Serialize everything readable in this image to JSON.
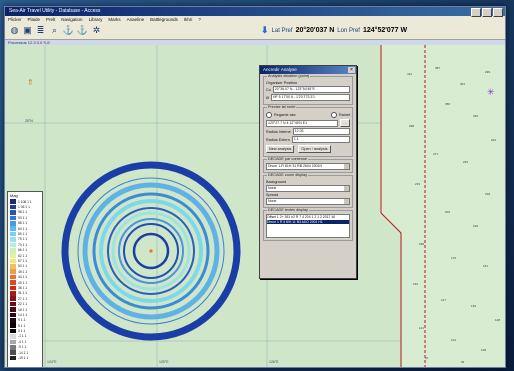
{
  "window": {
    "title": "Sea-Air Travel Utility - Database - Access"
  },
  "menu": [
    "Plicker",
    "Plaide",
    "Prelt",
    "Navigation",
    "Library",
    "Marks",
    "Anaeline",
    "Battlegrounds",
    "Ikhri",
    "?"
  ],
  "toolbar_icons": [
    "globe-icon",
    "save-icon",
    "layers-icon",
    "search-icon",
    "anchor-icon",
    "anchor-alt-icon",
    "settings-icon"
  ],
  "coords": {
    "lat_label": "Lat Pref",
    "lat_value": "20°20'037 N",
    "lon_label": "Lon Pref",
    "lon_value": "124°52'077 W"
  },
  "statusline": "Processus 12.3   0.0 S-E",
  "panel": {
    "title": "Ancredir Analyse",
    "group1_title": "Analysis situation (point)",
    "group1_sub": "Organiser Position",
    "row_a_label": "Co",
    "row_a_value": "20°36.07 N - 123°54'45\"E",
    "row_b_label": "Ø",
    "row_b_value": "HF 5 17'00 6 - 1'23 T73.3'1",
    "group2_title": "Precise lat route",
    "radio1": "Regarde abc",
    "radio2": "Rainet",
    "coord_field": "120°27.7 N 4.12°45'N E1",
    "dist_label": "Radius Interne",
    "dist_value": "12.03",
    "ext_label": "Radius Extern",
    "ext_value": "1.1",
    "btn_compute": "New analysis",
    "btn_apply": "Open / analysis",
    "group3_title": "DECADE par contenue",
    "select1": "Dhcor 1-R 81H 31 RB 2604 2001H",
    "group4_title": "DECADE zoom display",
    "sub4_label": "Background",
    "select2": "None",
    "sub5_label": "Spread",
    "select3": "None",
    "group5_title": "DECADE textes display",
    "list": [
      "Offset 1 2+ 381 h2 R 7 4 204 1 2 1 2 2017 46",
      "Dhcor 1 R 5 8/H 11 B3 ADO 2001 H1"
    ]
  },
  "legend": {
    "title": "Mag",
    "items": [
      {
        "label": "1 108 1 1",
        "color": "#1a2a6c"
      },
      {
        "label": "1 06 1 1",
        "color": "#1f3d8f"
      },
      {
        "label": "98 1 1",
        "color": "#2a56b3"
      },
      {
        "label": "93 1 1",
        "color": "#3a76d2"
      },
      {
        "label": "88 1 1",
        "color": "#4a98e5"
      },
      {
        "label": "84 1 1",
        "color": "#60b7ef"
      },
      {
        "label": "80 1 1",
        "color": "#7ad0f2"
      },
      {
        "label": "75 1 1",
        "color": "#98e2ea"
      },
      {
        "label": "70 1 1",
        "color": "#aef0d8"
      },
      {
        "label": "66 1 1",
        "color": "#c6f4bc"
      },
      {
        "label": "62 1 1",
        "color": "#e2f49b"
      },
      {
        "label": "57 1 1",
        "color": "#f4e27c"
      },
      {
        "label": "53 1 1",
        "color": "#f4c160"
      },
      {
        "label": "49 1 1",
        "color": "#f09c48"
      },
      {
        "label": "44 1 1",
        "color": "#e97334"
      },
      {
        "label": "40 1 1",
        "color": "#de4b25"
      },
      {
        "label": "36 1 1",
        "color": "#c92d1e"
      },
      {
        "label": "31 1 1",
        "color": "#a81b1c"
      },
      {
        "label": "27 1 1",
        "color": "#87141b"
      },
      {
        "label": "22 1 1",
        "color": "#650e19"
      },
      {
        "label": "18 1 1",
        "color": "#4a0a16"
      },
      {
        "label": "14 1 1",
        "color": "#2e0710"
      },
      {
        "label": "9 1 1",
        "color": "#1c050b"
      },
      {
        "label": "5 1 1",
        "color": "#0c0206"
      },
      {
        "label": "0 1 1",
        "color": "#000000"
      },
      {
        "label": "-1 1 1",
        "color": "#d9d9d9"
      },
      {
        "label": "-4 1 1",
        "color": "#a8a8a8"
      },
      {
        "label": "-9 1 1",
        "color": "#7a7a7a"
      },
      {
        "label": "-14 1 1",
        "color": "#4f4f4f"
      },
      {
        "label": "-19 1 1",
        "color": "#222222"
      }
    ]
  },
  "map": {
    "lat_labels": [
      "20°N",
      "21°N"
    ],
    "lon_labels": [
      "124°E",
      "125°E",
      "126°E"
    ]
  }
}
